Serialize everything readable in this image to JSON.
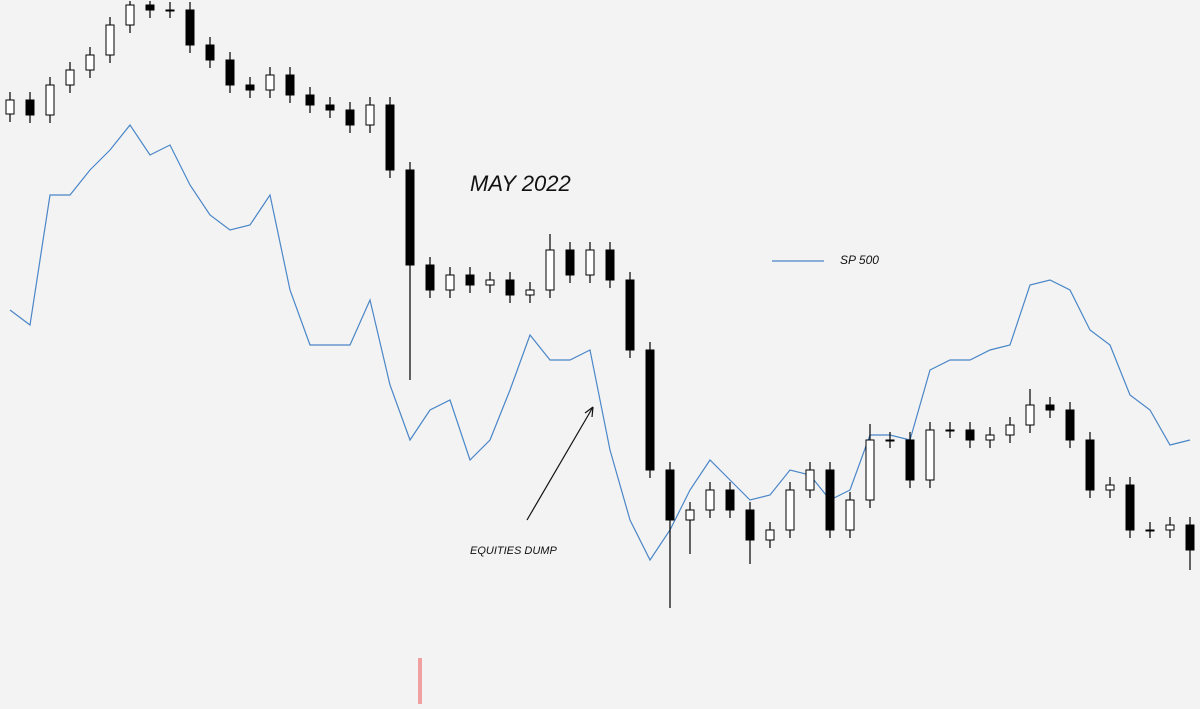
{
  "chart_data": {
    "type": "candlestick",
    "annotations": [
      "MAY 2022",
      "EQUITIES DUMP"
    ],
    "ohlc": {
      "open": [
        590,
        604,
        589,
        619,
        634,
        649,
        679,
        699,
        694,
        694,
        659,
        644,
        619,
        614,
        629,
        609,
        599,
        594,
        579,
        599,
        534,
        439,
        414,
        429,
        419,
        424,
        409,
        414,
        454,
        429,
        454,
        424,
        354,
        234,
        184,
        194,
        214,
        194,
        164,
        174,
        214,
        234,
        174,
        204,
        264,
        264,
        224,
        274,
        274,
        264,
        269,
        279,
        299,
        294,
        264,
        214,
        219,
        174,
        174,
        179
      ],
      "high": [
        612,
        612,
        627,
        642,
        657,
        687,
        703,
        703,
        702,
        702,
        667,
        652,
        627,
        637,
        637,
        617,
        607,
        602,
        607,
        607,
        542,
        447,
        437,
        437,
        432,
        432,
        422,
        470,
        462,
        462,
        462,
        432,
        362,
        242,
        202,
        222,
        222,
        202,
        182,
        222,
        242,
        242,
        212,
        280,
        272,
        272,
        282,
        282,
        282,
        277,
        287,
        315,
        307,
        302,
        272,
        227,
        227,
        182,
        187,
        187
      ],
      "low": [
        582,
        581,
        581,
        611,
        626,
        641,
        671,
        686,
        686,
        651,
        636,
        611,
        606,
        606,
        601,
        591,
        586,
        571,
        571,
        526,
        324,
        406,
        406,
        411,
        411,
        401,
        401,
        406,
        421,
        421,
        416,
        346,
        226,
        96,
        150,
        186,
        186,
        140,
        156,
        166,
        206,
        166,
        166,
        196,
        256,
        216,
        216,
        266,
        256,
        256,
        261,
        271,
        286,
        256,
        206,
        206,
        166,
        166,
        166,
        134
      ],
      "close": [
        604,
        589,
        619,
        634,
        649,
        679,
        699,
        694,
        694,
        659,
        644,
        619,
        614,
        629,
        609,
        599,
        594,
        579,
        599,
        534,
        439,
        414,
        429,
        419,
        424,
        409,
        414,
        454,
        429,
        454,
        424,
        354,
        234,
        184,
        194,
        214,
        194,
        164,
        174,
        214,
        234,
        174,
        204,
        264,
        264,
        224,
        274,
        274,
        264,
        269,
        279,
        299,
        294,
        264,
        214,
        219,
        174,
        174,
        179,
        154
      ],
      "up_color": "#ffffff",
      "down_color": "#000000"
    },
    "series": [
      {
        "name": "SP 500",
        "color": "#4a86c8",
        "values": [
          394,
          379,
          509,
          509,
          534,
          554,
          579,
          549,
          559,
          519,
          489,
          474,
          479,
          509,
          414,
          359,
          359,
          359,
          404,
          319,
          264,
          294,
          304,
          244,
          264,
          314,
          369,
          344,
          344,
          354,
          254,
          184,
          144,
          174,
          214,
          244,
          224,
          204,
          209,
          234,
          229,
          204,
          214,
          269,
          269,
          264,
          334,
          344,
          344,
          354,
          359,
          419,
          424,
          414,
          374,
          359,
          309,
          294,
          259,
          264
        ]
      }
    ],
    "ylim": [
      0,
      704
    ]
  }
}
